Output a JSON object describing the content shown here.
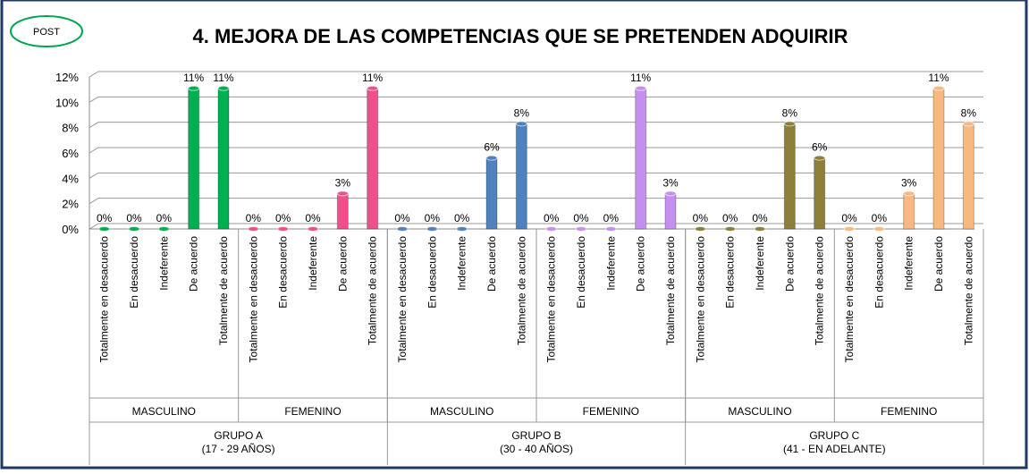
{
  "badge": "POST",
  "chart_data": {
    "type": "bar",
    "title": "4. MEJORA DE LAS COMPETENCIAS QUE SE PRETENDEN ADQUIRIR",
    "categories": [
      "Totalmente en desacuerdo",
      "En desacuerdo",
      "Indeferente",
      "De acuerdo",
      "Totalmente de acuerdo"
    ],
    "ylim": [
      0,
      12
    ],
    "yticks": [
      {
        "value": 0,
        "label": "0%"
      },
      {
        "value": 2,
        "label": "2%"
      },
      {
        "value": 4,
        "label": "4%"
      },
      {
        "value": 6,
        "label": "6%"
      },
      {
        "value": 8,
        "label": "8%"
      },
      {
        "value": 10,
        "label": "10%"
      },
      {
        "value": 12,
        "label": "12%"
      }
    ],
    "grid": true,
    "groups": [
      {
        "name": "GRUPO A",
        "subtitle": "(17 - 29 AÑOS)",
        "series": [
          {
            "name": "MASCULINO",
            "color": "#00b050",
            "values": [
              0,
              0,
              0,
              11.1,
              11.1
            ],
            "value_labels": [
              "0%",
              "0%",
              "0%",
              "11%",
              "11%"
            ]
          },
          {
            "name": "FEMENINO",
            "color": "#f0508a",
            "values": [
              0,
              0,
              0,
              2.8,
              11.1
            ],
            "value_labels": [
              "0%",
              "0%",
              "0%",
              "3%",
              "11%"
            ]
          }
        ]
      },
      {
        "name": "GRUPO B",
        "subtitle": "(30 - 40 AÑOS)",
        "series": [
          {
            "name": "MASCULINO",
            "color": "#4f81bd",
            "values": [
              0,
              0,
              0,
              5.6,
              8.3
            ],
            "value_labels": [
              "0%",
              "0%",
              "0%",
              "6%",
              "8%"
            ]
          },
          {
            "name": "FEMENINO",
            "color": "#c490f0",
            "values": [
              0,
              0,
              0,
              11.1,
              2.8
            ],
            "value_labels": [
              "0%",
              "0%",
              "0%",
              "11%",
              "3%"
            ]
          }
        ]
      },
      {
        "name": "GRUPO C",
        "subtitle": "(41 -  EN ADELANTE)",
        "series": [
          {
            "name": "MASCULINO",
            "color": "#8c7f3a",
            "values": [
              0,
              0,
              0,
              8.3,
              5.6
            ],
            "value_labels": [
              "0%",
              "0%",
              "0%",
              "8%",
              "6%"
            ]
          },
          {
            "name": "FEMENINO",
            "color": "#f8b880",
            "values": [
              0,
              0,
              2.8,
              11.1,
              8.3
            ],
            "value_labels": [
              "0%",
              "0%",
              "3%",
              "11%",
              "8%"
            ]
          }
        ]
      }
    ]
  }
}
